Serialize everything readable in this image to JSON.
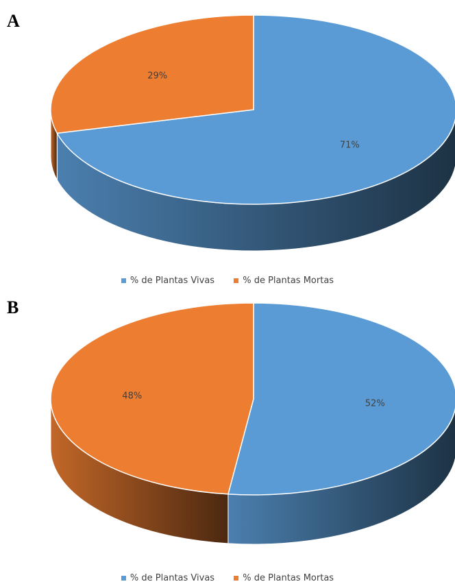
{
  "chart_data": [
    {
      "type": "pie",
      "panel_label": "A",
      "categories": [
        "% de Plantas Vivas",
        "% de Plantas Mortas"
      ],
      "values": [
        71,
        29
      ],
      "data_labels": [
        "71%",
        "29%"
      ],
      "colors": [
        "#5b9bd5",
        "#ed7d31"
      ],
      "legend_position": "bottom"
    },
    {
      "type": "pie",
      "panel_label": "B",
      "categories": [
        "% de Plantas Vivas",
        "% de Plantas Mortas"
      ],
      "values": [
        52,
        48
      ],
      "data_labels": [
        "52%",
        "48%"
      ],
      "colors": [
        "#5b9bd5",
        "#ed7d31"
      ],
      "legend_position": "bottom"
    }
  ]
}
